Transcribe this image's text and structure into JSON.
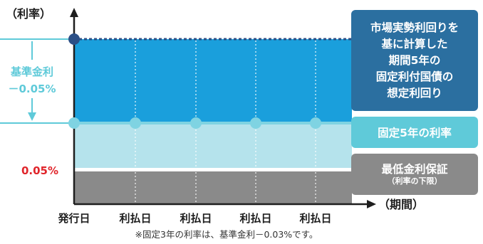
{
  "axes": {
    "y_label": "（利率）",
    "x_label": "（期間）",
    "x_ticks": [
      "発行日",
      "利払日",
      "利払日",
      "利払日",
      "利払日"
    ]
  },
  "left_labels": {
    "spread_line1": "基準金利",
    "spread_line2": "－0.05%",
    "floor_rate": "0.05%"
  },
  "boxes": {
    "market_lines": [
      "市場実勢利回りを",
      "基に計算した",
      "期間5年の",
      "固定利付国債の",
      "想定利回り"
    ],
    "fixed_rate": "固定5年の利率",
    "min_guarantee": "最低金利保証",
    "min_guarantee_sub": "（利率の下限）"
  },
  "footnote": "※固定3年の利率は、基準金利－0.03%です。",
  "colors": {
    "market_blue": "#1a9fdc",
    "fixed_light": "#b5e3ec",
    "floor_gray": "#8a8a8a",
    "dark_navy": "#2b6fa0",
    "teal": "#5fcad9",
    "red": "#e0252b"
  }
}
